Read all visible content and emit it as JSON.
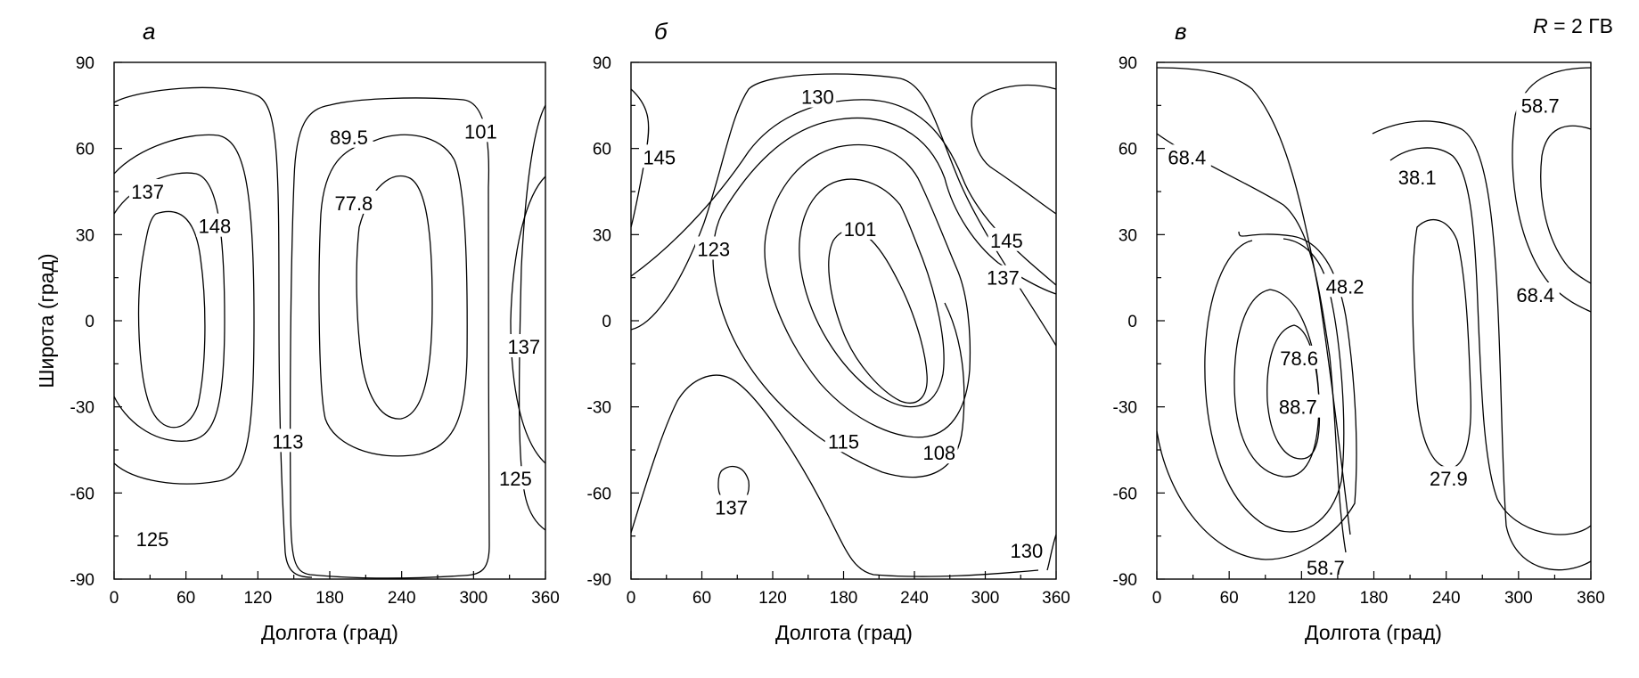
{
  "annotation": {
    "italic": "R",
    "rest": " = 2 ГВ"
  },
  "chart_data": [
    {
      "type": "contour",
      "panel": "а",
      "xlabel": "Долгота (град)",
      "ylabel": "Широта (град)",
      "xlim": [
        0,
        360
      ],
      "ylim": [
        -90,
        90
      ],
      "xticks": [
        "0",
        "60",
        "120",
        "180",
        "240",
        "300",
        "360"
      ],
      "yticks": [
        "90",
        "60",
        "30",
        "0",
        "-30",
        "-60",
        "-90"
      ],
      "levels": [
        {
          "label": "137",
          "lon": 28,
          "lat": 45
        },
        {
          "label": "148",
          "lon": 84,
          "lat": 33
        },
        {
          "label": "89.5",
          "lon": 196,
          "lat": 64
        },
        {
          "label": "77.8",
          "lon": 200,
          "lat": 41
        },
        {
          "label": "101",
          "lon": 306,
          "lat": 66
        },
        {
          "label": "137",
          "lon": 342,
          "lat": -9
        },
        {
          "label": "113",
          "lon": 145,
          "lat": -42
        },
        {
          "label": "125",
          "lon": 335,
          "lat": -55
        },
        {
          "label": "125",
          "lon": 32,
          "lat": -76
        }
      ]
    },
    {
      "type": "contour",
      "panel": "б",
      "xlabel": "Долгота (град)",
      "ylabel": "",
      "xlim": [
        0,
        360
      ],
      "ylim": [
        -90,
        90
      ],
      "xticks": [
        "0",
        "60",
        "120",
        "180",
        "240",
        "300",
        "360"
      ],
      "yticks": [
        "90",
        "60",
        "30",
        "0",
        "-30",
        "-60",
        "-90"
      ],
      "levels": [
        {
          "label": "130",
          "lon": 158,
          "lat": 78
        },
        {
          "label": "145",
          "lon": 24,
          "lat": 57
        },
        {
          "label": "123",
          "lon": 70,
          "lat": 25
        },
        {
          "label": "101",
          "lon": 194,
          "lat": 32
        },
        {
          "label": "145",
          "lon": 318,
          "lat": 28
        },
        {
          "label": "137",
          "lon": 315,
          "lat": 15
        },
        {
          "label": "115",
          "lon": 180,
          "lat": -42
        },
        {
          "label": "108",
          "lon": 261,
          "lat": -46
        },
        {
          "label": "137",
          "lon": 85,
          "lat": -65
        },
        {
          "label": "130",
          "lon": 335,
          "lat": -80
        }
      ]
    },
    {
      "type": "contour",
      "panel": "в",
      "xlabel": "Долгота (град)",
      "ylabel": "",
      "xlim": [
        0,
        360
      ],
      "ylim": [
        -90,
        90
      ],
      "xticks": [
        "0",
        "60",
        "120",
        "180",
        "240",
        "300",
        "360"
      ],
      "yticks": [
        "90",
        "60",
        "30",
        "0",
        "-30",
        "-60",
        "-90"
      ],
      "levels": [
        {
          "label": "58.7",
          "lon": 318,
          "lat": 75
        },
        {
          "label": "68.4",
          "lon": 25,
          "lat": 57
        },
        {
          "label": "38.1",
          "lon": 216,
          "lat": 50
        },
        {
          "label": "48.2",
          "lon": 156,
          "lat": 12
        },
        {
          "label": "68.4",
          "lon": 314,
          "lat": 9
        },
        {
          "label": "78.6",
          "lon": 118,
          "lat": -13
        },
        {
          "label": "88.7",
          "lon": 117,
          "lat": -30
        },
        {
          "label": "27.9",
          "lon": 242,
          "lat": -55
        },
        {
          "label": "58.7",
          "lon": 140,
          "lat": -86
        }
      ]
    }
  ]
}
